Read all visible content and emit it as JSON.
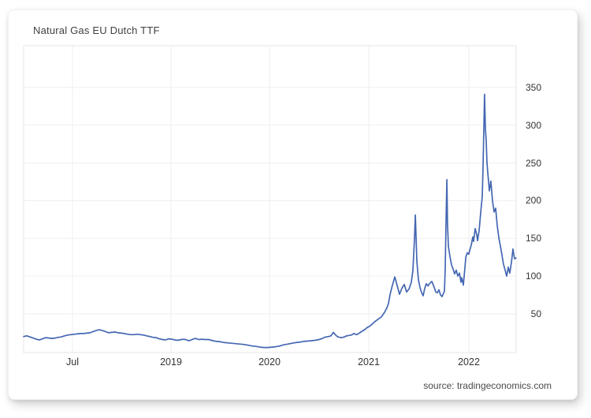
{
  "card": {
    "title": "Natural Gas EU Dutch TTF",
    "source_text": "source: tradingeconomics.com"
  },
  "colors": {
    "line": "#4467b2",
    "grid": "#efefef",
    "plot_border": "#e4e4e4",
    "tick_text": "#333333"
  },
  "chart_data": {
    "type": "line",
    "title": "Natural Gas EU Dutch TTF",
    "xlabel": "",
    "ylabel": "",
    "grid": true,
    "legend": "none",
    "xlim": [
      2018.25,
      2022.48
    ],
    "ylim": [
      0,
      405
    ],
    "y_ticks": [
      50,
      100,
      150,
      200,
      250,
      300,
      350
    ],
    "x_ticks": [
      {
        "label": "Jul",
        "t": 2018.5
      },
      {
        "label": "2019",
        "t": 2019
      },
      {
        "label": "2020",
        "t": 2020
      },
      {
        "label": "2021",
        "t": 2021
      },
      {
        "label": "2022",
        "t": 2022
      }
    ],
    "series": [
      {
        "name": "Natural Gas EU Dutch TTF",
        "color": "#4467b2",
        "points": [
          [
            2018.252,
            20
          ],
          [
            2018.268,
            21
          ],
          [
            2018.284,
            19.5
          ],
          [
            2018.3,
            18
          ],
          [
            2018.316,
            16.5
          ],
          [
            2018.332,
            15.5
          ],
          [
            2018.348,
            17
          ],
          [
            2018.364,
            18.5
          ],
          [
            2018.38,
            18
          ],
          [
            2018.396,
            17.5
          ],
          [
            2018.412,
            18
          ],
          [
            2018.428,
            19
          ],
          [
            2018.444,
            19.5
          ],
          [
            2018.46,
            21
          ],
          [
            2018.476,
            22
          ],
          [
            2018.492,
            22.5
          ],
          [
            2018.508,
            23
          ],
          [
            2018.524,
            23.5
          ],
          [
            2018.54,
            24
          ],
          [
            2018.556,
            24
          ],
          [
            2018.572,
            24.5
          ],
          [
            2018.588,
            25
          ],
          [
            2018.604,
            26.5
          ],
          [
            2018.62,
            28
          ],
          [
            2018.636,
            29
          ],
          [
            2018.652,
            28
          ],
          [
            2018.668,
            26.5
          ],
          [
            2018.684,
            25
          ],
          [
            2018.7,
            25.5
          ],
          [
            2018.716,
            26
          ],
          [
            2018.732,
            25
          ],
          [
            2018.748,
            24.5
          ],
          [
            2018.764,
            24
          ],
          [
            2018.78,
            23
          ],
          [
            2018.796,
            22.5
          ],
          [
            2018.812,
            22.5
          ],
          [
            2018.828,
            23
          ],
          [
            2018.844,
            22.5
          ],
          [
            2018.86,
            22
          ],
          [
            2018.876,
            21
          ],
          [
            2018.892,
            20
          ],
          [
            2018.908,
            19
          ],
          [
            2018.924,
            18.5
          ],
          [
            2018.94,
            17
          ],
          [
            2018.956,
            16
          ],
          [
            2018.972,
            15.5
          ],
          [
            2018.988,
            17
          ],
          [
            2019.008,
            16.5
          ],
          [
            2019.04,
            15.5
          ],
          [
            2019.072,
            15
          ],
          [
            2019.104,
            16
          ],
          [
            2019.136,
            16.5
          ],
          [
            2019.168,
            15
          ],
          [
            2019.184,
            14.5
          ],
          [
            2019.224,
            16.5
          ],
          [
            2019.248,
            17.5
          ],
          [
            2019.28,
            16
          ],
          [
            2019.312,
            16.5
          ],
          [
            2019.344,
            16
          ],
          [
            2019.384,
            16
          ],
          [
            2019.424,
            14.5
          ],
          [
            2019.464,
            13.5
          ],
          [
            2019.504,
            13
          ],
          [
            2019.544,
            12
          ],
          [
            2019.584,
            11.5
          ],
          [
            2019.624,
            11
          ],
          [
            2019.664,
            10.5
          ],
          [
            2019.704,
            10
          ],
          [
            2019.744,
            9.5
          ],
          [
            2019.784,
            8.5
          ],
          [
            2019.824,
            7.5
          ],
          [
            2019.864,
            7
          ],
          [
            2019.904,
            6
          ],
          [
            2019.944,
            5.5
          ],
          [
            2019.984,
            5.5
          ],
          [
            2020.024,
            6
          ],
          [
            2020.063,
            6.5
          ],
          [
            2020.103,
            7.5
          ],
          [
            2020.143,
            9
          ],
          [
            2020.183,
            10
          ],
          [
            2020.222,
            11
          ],
          [
            2020.262,
            12
          ],
          [
            2020.302,
            12.5
          ],
          [
            2020.341,
            13.5
          ],
          [
            2020.381,
            14
          ],
          [
            2020.421,
            14.5
          ],
          [
            2020.46,
            15
          ],
          [
            2020.5,
            16
          ],
          [
            2020.524,
            17
          ],
          [
            2020.548,
            18.5
          ],
          [
            2020.571,
            19.5
          ],
          [
            2020.595,
            20
          ],
          [
            2020.619,
            21
          ],
          [
            2020.635,
            24
          ],
          [
            2020.643,
            25.5
          ],
          [
            2020.659,
            23
          ],
          [
            2020.675,
            21
          ],
          [
            2020.69,
            19.5
          ],
          [
            2020.706,
            19
          ],
          [
            2020.73,
            18.5
          ],
          [
            2020.754,
            19.5
          ],
          [
            2020.778,
            21
          ],
          [
            2020.802,
            21.5
          ],
          [
            2020.825,
            22
          ],
          [
            2020.849,
            24
          ],
          [
            2020.865,
            23
          ],
          [
            2020.881,
            22.5
          ],
          [
            2020.897,
            24
          ],
          [
            2020.92,
            26
          ],
          [
            2020.944,
            28
          ],
          [
            2020.968,
            30
          ],
          [
            2020.984,
            32
          ],
          [
            2021.0,
            33
          ],
          [
            2021.031,
            36
          ],
          [
            2021.063,
            40
          ],
          [
            2021.094,
            43
          ],
          [
            2021.126,
            46
          ],
          [
            2021.157,
            52
          ],
          [
            2021.181,
            58
          ],
          [
            2021.197,
            64
          ],
          [
            2021.213,
            76
          ],
          [
            2021.236,
            88
          ],
          [
            2021.26,
            99
          ],
          [
            2021.283,
            88
          ],
          [
            2021.307,
            76
          ],
          [
            2021.331,
            84
          ],
          [
            2021.354,
            89
          ],
          [
            2021.378,
            79
          ],
          [
            2021.402,
            83
          ],
          [
            2021.425,
            92
          ],
          [
            2021.441,
            108
          ],
          [
            2021.457,
            150
          ],
          [
            2021.465,
            181
          ],
          [
            2021.48,
            120
          ],
          [
            2021.496,
            95
          ],
          [
            2021.512,
            85
          ],
          [
            2021.528,
            78
          ],
          [
            2021.543,
            74
          ],
          [
            2021.559,
            84
          ],
          [
            2021.575,
            90
          ],
          [
            2021.591,
            87
          ],
          [
            2021.606,
            90
          ],
          [
            2021.63,
            93
          ],
          [
            2021.654,
            85
          ],
          [
            2021.669,
            79
          ],
          [
            2021.685,
            78
          ],
          [
            2021.701,
            82
          ],
          [
            2021.717,
            75
          ],
          [
            2021.732,
            73
          ],
          [
            2021.756,
            80
          ],
          [
            2021.764,
            110
          ],
          [
            2021.772,
            170
          ],
          [
            2021.78,
            228
          ],
          [
            2021.787,
            170
          ],
          [
            2021.795,
            140
          ],
          [
            2021.811,
            126
          ],
          [
            2021.827,
            115
          ],
          [
            2021.843,
            109
          ],
          [
            2021.858,
            103
          ],
          [
            2021.874,
            108
          ],
          [
            2021.89,
            100
          ],
          [
            2021.906,
            104
          ],
          [
            2021.921,
            92
          ],
          [
            2021.929,
            98
          ],
          [
            2021.945,
            88
          ],
          [
            2021.961,
            111
          ],
          [
            2021.969,
            125
          ],
          [
            2021.984,
            131
          ],
          [
            2022.0,
            129
          ],
          [
            2022.008,
            134
          ],
          [
            2022.024,
            141
          ],
          [
            2022.039,
            152
          ],
          [
            2022.047,
            146
          ],
          [
            2022.063,
            163
          ],
          [
            2022.079,
            155
          ],
          [
            2022.087,
            147
          ],
          [
            2022.102,
            160
          ],
          [
            2022.118,
            184
          ],
          [
            2022.126,
            195
          ],
          [
            2022.134,
            205
          ],
          [
            2022.142,
            245
          ],
          [
            2022.15,
            300
          ],
          [
            2022.157,
            341
          ],
          [
            2022.165,
            295
          ],
          [
            2022.173,
            280
          ],
          [
            2022.181,
            250
          ],
          [
            2022.197,
            225
          ],
          [
            2022.205,
            213
          ],
          [
            2022.22,
            226
          ],
          [
            2022.236,
            200
          ],
          [
            2022.252,
            185
          ],
          [
            2022.268,
            190
          ],
          [
            2022.283,
            168
          ],
          [
            2022.299,
            151
          ],
          [
            2022.315,
            140
          ],
          [
            2022.331,
            128
          ],
          [
            2022.346,
            116
          ],
          [
            2022.362,
            108
          ],
          [
            2022.378,
            100
          ],
          [
            2022.394,
            112
          ],
          [
            2022.409,
            104
          ],
          [
            2022.425,
            118
          ],
          [
            2022.441,
            136
          ],
          [
            2022.449,
            129
          ],
          [
            2022.457,
            123
          ],
          [
            2022.472,
            124
          ]
        ]
      }
    ],
    "source": "source: tradingeconomics.com"
  }
}
